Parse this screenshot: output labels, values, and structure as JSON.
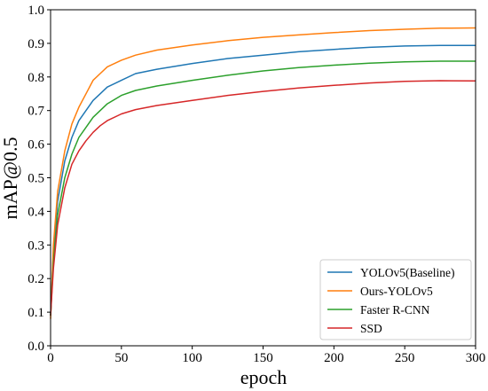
{
  "chart_data": {
    "type": "line",
    "title": "",
    "xlabel": "epoch",
    "ylabel": "mAP@0.5",
    "xlim": [
      0,
      300
    ],
    "ylim": [
      0.0,
      1.0
    ],
    "xticks": [
      0,
      50,
      100,
      150,
      200,
      250,
      300
    ],
    "yticks": [
      0.0,
      0.1,
      0.2,
      0.3,
      0.4,
      0.5,
      0.6,
      0.7,
      0.8,
      0.9,
      1.0
    ],
    "grid": false,
    "legend_position": "lower-right",
    "x": [
      0,
      2,
      5,
      10,
      15,
      20,
      25,
      30,
      35,
      40,
      50,
      60,
      75,
      100,
      125,
      150,
      175,
      200,
      225,
      250,
      275,
      300
    ],
    "series": [
      {
        "name": "YOLOv5(Baseline)",
        "color": "#1f77b4",
        "values": [
          0.09,
          0.28,
          0.43,
          0.55,
          0.62,
          0.67,
          0.7,
          0.73,
          0.75,
          0.77,
          0.79,
          0.81,
          0.823,
          0.84,
          0.855,
          0.865,
          0.875,
          0.882,
          0.888,
          0.892,
          0.894,
          0.894
        ]
      },
      {
        "name": "Ours-YOLOv5",
        "color": "#ff7f0e",
        "values": [
          0.08,
          0.3,
          0.46,
          0.58,
          0.66,
          0.71,
          0.75,
          0.79,
          0.81,
          0.83,
          0.85,
          0.865,
          0.88,
          0.895,
          0.908,
          0.918,
          0.925,
          0.932,
          0.938,
          0.942,
          0.945,
          0.946
        ]
      },
      {
        "name": "Faster R-CNN",
        "color": "#2ca02c",
        "values": [
          0.09,
          0.25,
          0.39,
          0.5,
          0.57,
          0.62,
          0.65,
          0.68,
          0.7,
          0.72,
          0.745,
          0.76,
          0.773,
          0.79,
          0.805,
          0.818,
          0.828,
          0.835,
          0.841,
          0.845,
          0.847,
          0.847
        ]
      },
      {
        "name": "SSD",
        "color": "#d62728",
        "values": [
          0.09,
          0.23,
          0.36,
          0.47,
          0.54,
          0.58,
          0.61,
          0.635,
          0.655,
          0.67,
          0.69,
          0.703,
          0.715,
          0.73,
          0.745,
          0.757,
          0.767,
          0.775,
          0.782,
          0.787,
          0.789,
          0.788
        ]
      }
    ]
  }
}
